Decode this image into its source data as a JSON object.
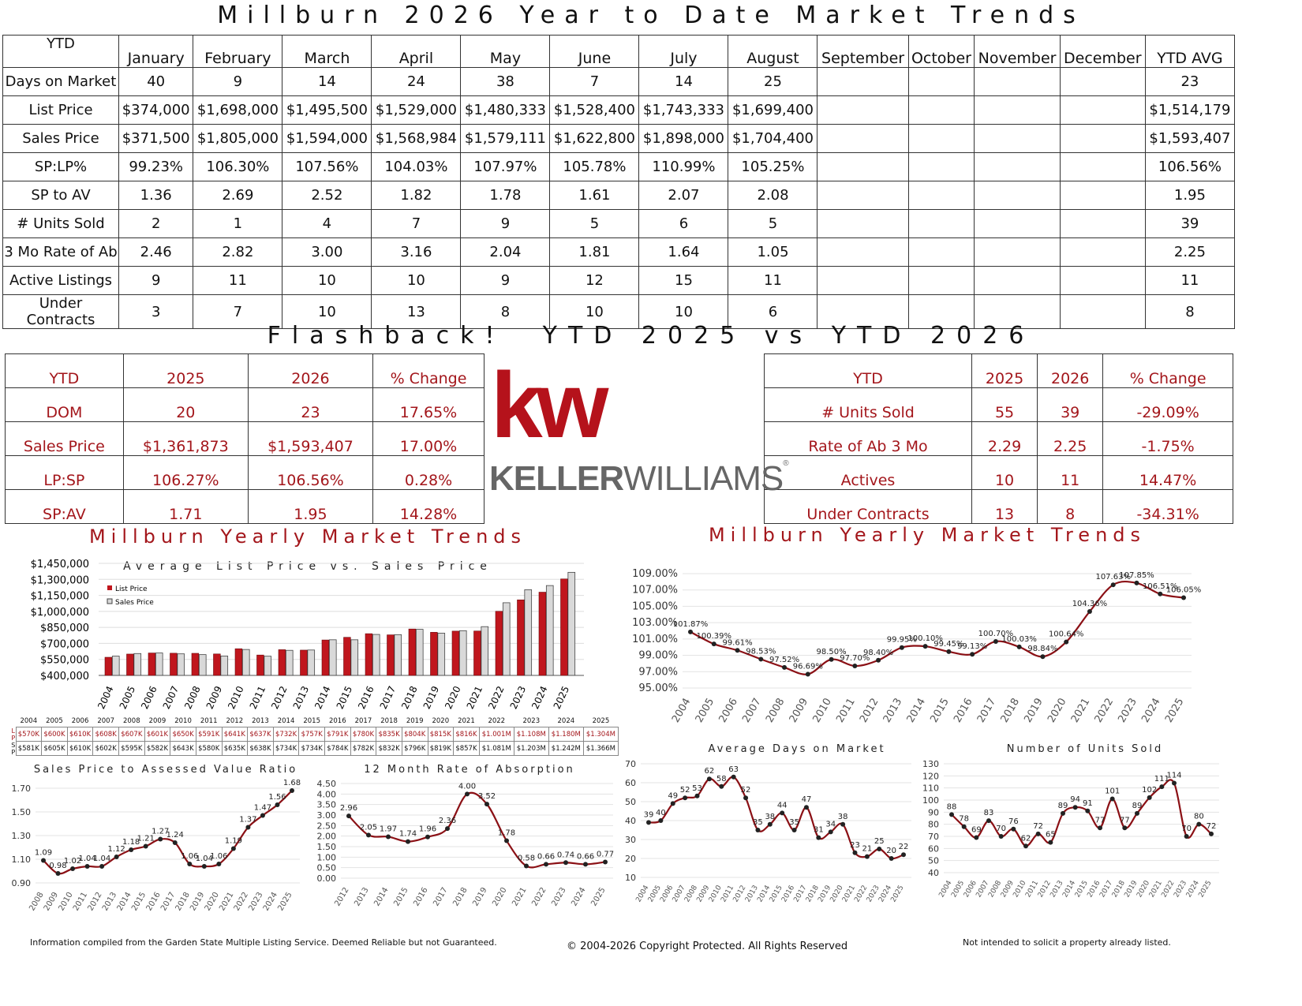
{
  "header": {
    "title": "Millburn 2026 Year to Date Market Trends"
  },
  "ytd": {
    "corner": "YTD",
    "columns": [
      "January",
      "February",
      "March",
      "April",
      "May",
      "June",
      "July",
      "August",
      "September",
      "October",
      "November",
      "December",
      "YTD AVG"
    ],
    "rows": [
      {
        "label": "Days on Market",
        "cells": [
          "40",
          "9",
          "14",
          "24",
          "38",
          "7",
          "14",
          "25",
          "",
          "",
          "",
          "",
          "23"
        ]
      },
      {
        "label": "List Price",
        "cells": [
          "$374,000",
          "$1,698,000",
          "$1,495,500",
          "$1,529,000",
          "$1,480,333",
          "$1,528,400",
          "$1,743,333",
          "$1,699,400",
          "",
          "",
          "",
          "",
          "$1,514,179"
        ]
      },
      {
        "label": "Sales Price",
        "cells": [
          "$371,500",
          "$1,805,000",
          "$1,594,000",
          "$1,568,984",
          "$1,579,111",
          "$1,622,800",
          "$1,898,000",
          "$1,704,400",
          "",
          "",
          "",
          "",
          "$1,593,407"
        ]
      },
      {
        "label": "SP:LP%",
        "cells": [
          "99.23%",
          "106.30%",
          "107.56%",
          "104.03%",
          "107.97%",
          "105.78%",
          "110.99%",
          "105.25%",
          "",
          "",
          "",
          "",
          "106.56%"
        ]
      },
      {
        "label": "SP to AV",
        "cells": [
          "1.36",
          "2.69",
          "2.52",
          "1.82",
          "1.78",
          "1.61",
          "2.07",
          "2.08",
          "",
          "",
          "",
          "",
          "1.95"
        ]
      },
      {
        "label": "# Units Sold",
        "cells": [
          "2",
          "1",
          "4",
          "7",
          "9",
          "5",
          "6",
          "5",
          "",
          "",
          "",
          "",
          "39"
        ]
      },
      {
        "label": "3 Mo Rate of Ab",
        "cells": [
          "2.46",
          "2.82",
          "3.00",
          "3.16",
          "2.04",
          "1.81",
          "1.64",
          "1.05",
          "",
          "",
          "",
          "",
          "2.25"
        ]
      },
      {
        "label": "Active Listings",
        "cells": [
          "9",
          "11",
          "10",
          "10",
          "9",
          "12",
          "15",
          "11",
          "",
          "",
          "",
          "",
          "11"
        ]
      },
      {
        "label": "Under Contracts",
        "cells": [
          "3",
          "7",
          "10",
          "13",
          "8",
          "10",
          "10",
          "6",
          "",
          "",
          "",
          "",
          "8"
        ]
      }
    ]
  },
  "flashback": {
    "title": "Flashback!  YTD 2025 vs YTD 2026",
    "left": {
      "header": [
        "YTD",
        "2025",
        "2026",
        "% Change"
      ],
      "rows": [
        [
          "DOM",
          "20",
          "23",
          "17.65%"
        ],
        [
          "Sales Price",
          "$1,361,873",
          "$1,593,407",
          "17.00%"
        ],
        [
          "LP:SP",
          "106.27%",
          "106.56%",
          "0.28%"
        ],
        [
          "SP:AV",
          "1.71",
          "1.95",
          "14.28%"
        ]
      ]
    },
    "right": {
      "header": [
        "YTD",
        "2025",
        "2026",
        "% Change"
      ],
      "rows": [
        [
          "# Units Sold",
          "55",
          "39",
          "-29.09%"
        ],
        [
          "Rate of Ab 3 Mo",
          "2.29",
          "2.25",
          "-1.75%"
        ],
        [
          "Actives",
          "10",
          "11",
          "14.47%"
        ],
        [
          "Under Contracts",
          "13",
          "8",
          "-34.31%"
        ]
      ]
    }
  },
  "logo": {
    "mark": "kw",
    "wordmark_a": "KELLER",
    "wordmark_b": "WILLIAMS",
    "reg": "®",
    "color": "#b5121b"
  },
  "section_left_title": "Millburn Yearly Market Trends",
  "section_right_title": "Millburn Yearly Market Trends",
  "lsp_table": {
    "row_labels": [
      "L P",
      "S P"
    ],
    "years": [
      "2004",
      "2005",
      "2006",
      "2007",
      "2008",
      "2009",
      "2010",
      "2011",
      "2012",
      "2013",
      "2014",
      "2015",
      "2016",
      "2017",
      "2018",
      "2019",
      "2020",
      "2021",
      "2022",
      "2023",
      "2024",
      "2025"
    ],
    "lp": [
      "$570K",
      "$600K",
      "$610K",
      "$608K",
      "$607K",
      "$601K",
      "$650K",
      "$591K",
      "$641K",
      "$637K",
      "$732K",
      "$757K",
      "$791K",
      "$780K",
      "$835K",
      "$804K",
      "$815K",
      "$816K",
      "$1.001M",
      "$1.108M",
      "$1.180M",
      "$1.304M"
    ],
    "sp": [
      "$581K",
      "$605K",
      "$610K",
      "$602K",
      "$595K",
      "$582K",
      "$643K",
      "$580K",
      "$635K",
      "$638K",
      "$734K",
      "$734K",
      "$784K",
      "$782K",
      "$832K",
      "$796K",
      "$819K",
      "$857K",
      "$1.081M",
      "$1.203M",
      "$1.242M",
      "$1.366M"
    ]
  },
  "footer": {
    "left": "Information compiled from the Garden State Multiple Listing Service.  Deemed Reliable but not Guaranteed.",
    "center": "© 2004-2026 Copyright Protected.  All Rights Reserved",
    "right": "Not intended to solicit a property already listed."
  },
  "colors": {
    "accent": "#a3161b",
    "line": "#8b1015",
    "bar_lp": "#c0161d",
    "bar_sp": "#d9d9d9"
  },
  "chart_data": [
    {
      "id": "lp-sp",
      "type": "bar",
      "title": "Average List Price vs. Sales Price",
      "categories": [
        "2004",
        "2005",
        "2006",
        "2007",
        "2008",
        "2009",
        "2010",
        "2011",
        "2012",
        "2013",
        "2014",
        "2015",
        "2016",
        "2017",
        "2018",
        "2019",
        "2020",
        "2021",
        "2022",
        "2023",
        "2024",
        "2025"
      ],
      "series": [
        {
          "name": "List Price",
          "values": [
            570,
            600,
            610,
            608,
            607,
            601,
            650,
            591,
            641,
            637,
            732,
            757,
            791,
            780,
            835,
            804,
            815,
            816,
            1001,
            1108,
            1180,
            1304
          ]
        },
        {
          "name": "Sales Price",
          "values": [
            581,
            605,
            610,
            602,
            595,
            582,
            643,
            580,
            635,
            638,
            734,
            734,
            784,
            782,
            832,
            796,
            819,
            857,
            1081,
            1203,
            1242,
            1366
          ]
        }
      ],
      "yticks": [
        "$400,000",
        "$550,000",
        "$700,000",
        "$850,000",
        "$1,000,000",
        "$1,150,000",
        "$1,300,000",
        "$1,450,000"
      ],
      "ylim": [
        400,
        1450
      ],
      "legend": "top-left"
    },
    {
      "id": "splp",
      "type": "line",
      "title": "",
      "categories": [
        "2004",
        "2005",
        "2006",
        "2007",
        "2008",
        "2009",
        "2010",
        "2011",
        "2012",
        "2013",
        "2014",
        "2015",
        "2016",
        "2017",
        "2018",
        "2019",
        "2020",
        "2021",
        "2022",
        "2023",
        "2024",
        "2025"
      ],
      "values": [
        101.87,
        100.39,
        99.61,
        98.53,
        97.52,
        96.69,
        98.5,
        97.7,
        98.4,
        99.95,
        100.1,
        99.45,
        99.13,
        100.7,
        100.03,
        98.84,
        100.64,
        104.36,
        107.63,
        107.85,
        106.51,
        106.05
      ],
      "labels": [
        "101.87%",
        "100.39%",
        "99.61%",
        "98.53%",
        "97.52%",
        "96.69%",
        "98.50%",
        "97.70%",
        "98.40%",
        "99.95%",
        "100.10%",
        "99.45%",
        "99.13%",
        "100.70%",
        "100.03%",
        "98.84%",
        "100.64%",
        "104.36%",
        "107.63%",
        "107.85%",
        "106.51%",
        "106.05%"
      ],
      "yticks": [
        "95.00%",
        "97.00%",
        "99.00%",
        "101.00%",
        "103.00%",
        "105.00%",
        "107.00%",
        "109.00%"
      ],
      "ylim": [
        95,
        109
      ]
    },
    {
      "id": "spav",
      "type": "line",
      "title": "Sales Price to Assessed Value Ratio",
      "categories": [
        "2008",
        "2009",
        "2010",
        "2011",
        "2012",
        "2013",
        "2014",
        "2015",
        "2016",
        "2017",
        "2018",
        "2019",
        "2020",
        "2021",
        "2022",
        "2023",
        "2024",
        "2025"
      ],
      "values": [
        1.09,
        0.98,
        1.02,
        1.04,
        1.04,
        1.12,
        1.18,
        1.21,
        1.27,
        1.24,
        1.06,
        1.04,
        1.06,
        1.19,
        1.37,
        1.47,
        1.56,
        1.68
      ],
      "labels": [
        "1.09",
        "0.98",
        "1.02",
        "1.04",
        "1.04",
        "1.12",
        "1.18",
        "1.21",
        "1.27",
        "1.24",
        "1.06",
        "1.04",
        "1.06",
        "1.19",
        "1.37",
        "1.47",
        "1.56",
        "1.68"
      ],
      "yticks": [
        "0.90",
        "1.10",
        "1.30",
        "1.50",
        "1.70"
      ],
      "ylim": [
        0.9,
        1.7
      ]
    },
    {
      "id": "abs",
      "type": "line",
      "title": "12 Month Rate of Absorption",
      "categories": [
        "2012",
        "2013",
        "2014",
        "2015",
        "2016",
        "2017",
        "2018",
        "2019",
        "2020",
        "2021",
        "2022",
        "2023",
        "2024",
        "2025"
      ],
      "values": [
        2.96,
        2.05,
        1.97,
        1.74,
        1.96,
        2.36,
        4.0,
        3.52,
        1.78,
        0.58,
        0.66,
        0.74,
        0.66,
        0.77
      ],
      "labels": [
        "2.96",
        "2.05",
        "1.97",
        "1.74",
        "1.96",
        "2.36",
        "4.00",
        "3.52",
        "1.78",
        "0.58",
        "0.66",
        "0.74",
        "0.66",
        "0.77"
      ],
      "yticks": [
        "0.00",
        "0.50",
        "1.00",
        "1.50",
        "2.00",
        "2.50",
        "3.00",
        "3.50",
        "4.00",
        "4.50"
      ],
      "ylim": [
        0,
        4.5
      ]
    },
    {
      "id": "dom",
      "type": "line",
      "title": "Average Days on Market",
      "categories": [
        "2004",
        "2005",
        "2006",
        "2007",
        "2008",
        "2009",
        "2010",
        "2011",
        "2012",
        "2013",
        "2014",
        "2015",
        "2016",
        "2017",
        "2018",
        "2019",
        "2020",
        "2021",
        "2022",
        "2023",
        "2024",
        "2025"
      ],
      "values": [
        39,
        40,
        49,
        52,
        53,
        62,
        58,
        63,
        52,
        35,
        38,
        44,
        35,
        47,
        31,
        34,
        38,
        23,
        21,
        25,
        20,
        22
      ],
      "labels": [
        "39",
        "40",
        "49",
        "52",
        "53",
        "62",
        "58",
        "63",
        "52",
        "35",
        "38",
        "44",
        "35",
        "47",
        "31",
        "34",
        "38",
        "23",
        "21",
        "25",
        "20",
        "22"
      ],
      "yticks": [
        "10",
        "20",
        "30",
        "40",
        "50",
        "60",
        "70"
      ],
      "ylim": [
        10,
        70
      ]
    },
    {
      "id": "units",
      "type": "line",
      "title": "Number of Units Sold",
      "categories": [
        "2004",
        "2005",
        "2006",
        "2007",
        "2008",
        "2009",
        "2010",
        "2011",
        "2012",
        "2013",
        "2014",
        "2015",
        "2016",
        "2017",
        "2018",
        "2019",
        "2020",
        "2021",
        "2022",
        "2023",
        "2024",
        "2025"
      ],
      "values": [
        88,
        78,
        69,
        83,
        70,
        76,
        62,
        72,
        65,
        89,
        94,
        91,
        77,
        101,
        77,
        89,
        102,
        111,
        114,
        70,
        80,
        72
      ],
      "labels": [
        "88",
        "78",
        "69",
        "83",
        "70",
        "76",
        "62",
        "72",
        "65",
        "89",
        "94",
        "91",
        "77",
        "101",
        "77",
        "89",
        "102",
        "111",
        "114",
        "70",
        "80",
        "72"
      ],
      "yticks": [
        "40",
        "50",
        "60",
        "70",
        "80",
        "90",
        "100",
        "110",
        "120",
        "130"
      ],
      "ylim": [
        40,
        130
      ]
    }
  ]
}
